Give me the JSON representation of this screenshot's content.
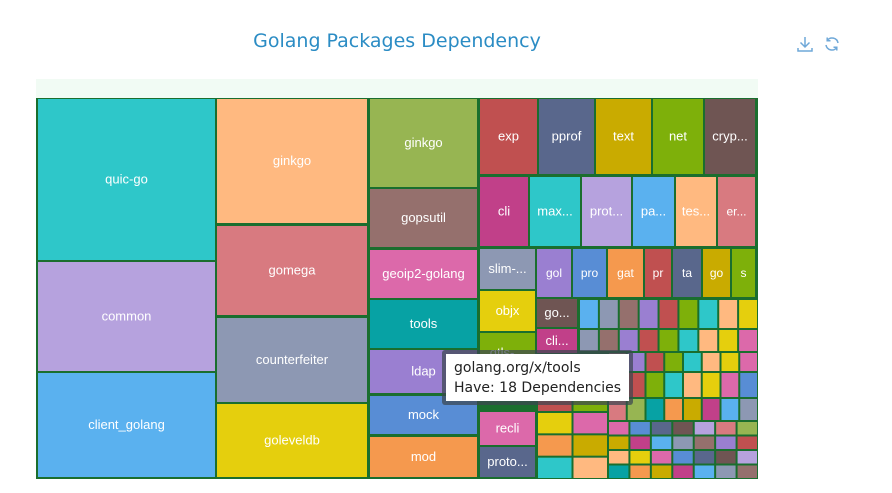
{
  "chart_data": {
    "type": "treemap",
    "title": "Golang Packages Dependency",
    "colors": {
      "title": "#2b8cc4",
      "header_band": "#f1fbf4",
      "border": "#1a6e2e",
      "palette": [
        "#2ec7c9",
        "#b6a2de",
        "#5ab1ef",
        "#ffb980",
        "#d87a80",
        "#8d98b3",
        "#e5cf0d",
        "#97b552",
        "#95706d",
        "#dc69aa",
        "#07a2a4",
        "#9a7fd1",
        "#588dd5",
        "#f5994e",
        "#c05050",
        "#59678c",
        "#c9ab00",
        "#7eb00a",
        "#6f5553",
        "#c14089"
      ]
    },
    "tooltip": {
      "name": "golang.org/x/tools",
      "line2": "Have: 18 Dependencies"
    },
    "labeled_nodes": [
      {
        "label": "quic-go",
        "value": 22
      },
      {
        "label": "common",
        "value": 15
      },
      {
        "label": "client_golang",
        "value": 14
      },
      {
        "label": "ginkgo",
        "value": 15
      },
      {
        "label": "gomega",
        "value": 11
      },
      {
        "label": "counterfeiter",
        "value": 10
      },
      {
        "label": "goleveldb",
        "value": 9
      },
      {
        "label": "ginkgo",
        "value": 9
      },
      {
        "label": "gopsutil",
        "value": 6
      },
      {
        "label": "geoip2-golang",
        "value": 5
      },
      {
        "label": "tools",
        "value": 5
      },
      {
        "label": "ldap",
        "value": 4
      },
      {
        "label": "mock",
        "value": 4
      },
      {
        "label": "mod",
        "value": 4
      },
      {
        "label": "exp",
        "value": 3
      },
      {
        "label": "pprof",
        "value": 3
      },
      {
        "label": "text",
        "value": 3
      },
      {
        "label": "net",
        "value": 3
      },
      {
        "label": "cryp...",
        "value": 3
      },
      {
        "label": "cli",
        "value": 3
      },
      {
        "label": "max...",
        "value": 3
      },
      {
        "label": "prot...",
        "value": 3
      },
      {
        "label": "pa...",
        "value": 3
      },
      {
        "label": "tes...",
        "value": 3
      },
      {
        "label": "er...",
        "value": 3
      },
      {
        "label": "slim-...",
        "value": 2
      },
      {
        "label": "gol",
        "value": 2
      },
      {
        "label": "pro",
        "value": 2
      },
      {
        "label": "gat",
        "value": 2
      },
      {
        "label": "pr",
        "value": 2
      },
      {
        "label": "ta",
        "value": 2
      },
      {
        "label": "go",
        "value": 2
      },
      {
        "label": "s",
        "value": 2
      },
      {
        "label": "objx",
        "value": 2
      },
      {
        "label": "go...",
        "value": 2
      },
      {
        "label": "cli...",
        "value": 2
      },
      {
        "label": "gtls-...",
        "value": 2
      },
      {
        "label": "recli",
        "value": 2
      },
      {
        "label": "proto...",
        "value": 2
      }
    ]
  }
}
